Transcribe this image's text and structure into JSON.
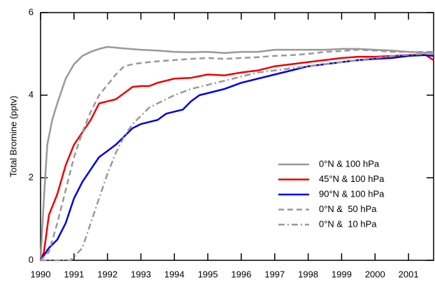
{
  "chart_data": {
    "type": "line",
    "y_label": "Total Bromine (pptv)",
    "xlim": [
      1990,
      2001.75
    ],
    "xticks": [
      1990,
      1991,
      1992,
      1993,
      1994,
      1995,
      1996,
      1997,
      1998,
      1999,
      2000,
      2001
    ],
    "ylim": [
      0,
      6
    ],
    "yticks": [
      0,
      2,
      4,
      6
    ],
    "legend_position": "lower right",
    "series": [
      {
        "name": "0°N & 100 hPa",
        "color": "#999999",
        "dash": "solid",
        "x": [
          1990,
          1990.1,
          1990.2,
          1990.35,
          1990.5,
          1990.75,
          1991,
          1991.25,
          1991.5,
          1991.75,
          1992,
          1992.5,
          1993,
          1993.5,
          1994,
          1994.5,
          1995,
          1995.5,
          1996,
          1996.5,
          1997,
          1997.5,
          1998,
          1998.5,
          1999,
          1999.5,
          2000,
          2000.5,
          2001,
          2001.5,
          2001.75
        ],
        "values": [
          0,
          1.5,
          2.8,
          3.4,
          3.8,
          4.4,
          4.75,
          4.95,
          5.05,
          5.12,
          5.17,
          5.13,
          5.1,
          5.08,
          5.05,
          5.04,
          5.05,
          5.02,
          5.05,
          5.05,
          5.1,
          5.1,
          5.1,
          5.1,
          5.12,
          5.12,
          5.1,
          5.08,
          5.05,
          5.03,
          5.0
        ]
      },
      {
        "name": "45°N & 100 hPa",
        "color": "#ee0000",
        "dash": "solid",
        "x": [
          1990,
          1990.1,
          1990.25,
          1990.5,
          1990.75,
          1991,
          1991.25,
          1991.5,
          1991.75,
          1992,
          1992.25,
          1992.5,
          1992.75,
          1993,
          1993.25,
          1993.5,
          1994,
          1994.5,
          1995,
          1995.5,
          1996,
          1996.5,
          1997,
          1997.5,
          1998,
          1998.5,
          1999,
          1999.5,
          2000,
          2000.5,
          2001,
          2001.5,
          2001.75
        ],
        "values": [
          0,
          0.2,
          1.1,
          1.6,
          2.3,
          2.8,
          3.1,
          3.4,
          3.8,
          3.85,
          3.9,
          4.05,
          4.2,
          4.22,
          4.22,
          4.3,
          4.4,
          4.42,
          4.5,
          4.48,
          4.55,
          4.6,
          4.7,
          4.75,
          4.8,
          4.85,
          4.9,
          4.93,
          4.93,
          4.95,
          4.97,
          4.98,
          4.85
        ]
      },
      {
        "name": "90°N & 100 hPa",
        "color": "#0000e0",
        "dash": "solid",
        "x": [
          1990,
          1990.25,
          1990.5,
          1990.75,
          1991,
          1991.25,
          1991.5,
          1991.75,
          1992,
          1992.25,
          1992.5,
          1992.75,
          1993,
          1993.25,
          1993.5,
          1993.75,
          1994,
          1994.25,
          1994.5,
          1994.75,
          1995,
          1995.5,
          1996,
          1996.5,
          1997,
          1997.5,
          1998,
          1998.5,
          1999,
          1999.5,
          2000,
          2000.5,
          2001,
          2001.5,
          2001.75
        ],
        "values": [
          0,
          0.3,
          0.5,
          0.9,
          1.5,
          1.9,
          2.2,
          2.5,
          2.65,
          2.8,
          3.0,
          3.2,
          3.3,
          3.35,
          3.4,
          3.55,
          3.6,
          3.65,
          3.85,
          4.0,
          4.05,
          4.15,
          4.3,
          4.4,
          4.5,
          4.6,
          4.7,
          4.75,
          4.8,
          4.85,
          4.88,
          4.9,
          4.95,
          4.97,
          4.95
        ]
      },
      {
        "name": "0°N &  50 hPa",
        "color": "#999999",
        "dash": "dashed",
        "x": [
          1990,
          1990.25,
          1990.5,
          1990.75,
          1991,
          1991.25,
          1991.5,
          1991.75,
          1992,
          1992.25,
          1992.5,
          1992.75,
          1993,
          1993.5,
          1994,
          1994.5,
          1995,
          1995.5,
          1996,
          1996.5,
          1997,
          1997.5,
          1998,
          1998.5,
          1999,
          1999.5,
          2000,
          2000.5,
          2001,
          2001.5,
          2001.75
        ],
        "values": [
          0,
          0.2,
          0.9,
          1.7,
          2.5,
          3.1,
          3.6,
          4.0,
          4.25,
          4.5,
          4.7,
          4.75,
          4.78,
          4.82,
          4.85,
          4.88,
          4.9,
          4.88,
          4.9,
          4.92,
          4.95,
          4.97,
          5.0,
          5.05,
          5.07,
          5.1,
          5.08,
          5.05,
          5.05,
          5.05,
          5.05
        ]
      },
      {
        "name": "0°N &  10 hPa",
        "color": "#999999",
        "dash": "dashdot",
        "x": [
          1990,
          1990.5,
          1990.9,
          1991.25,
          1991.5,
          1991.75,
          1992,
          1992.25,
          1992.5,
          1992.75,
          1993,
          1993.25,
          1993.5,
          1994,
          1994.5,
          1995,
          1995.5,
          1996,
          1996.5,
          1997,
          1997.5,
          1998,
          1998.5,
          1999,
          1999.5,
          2000,
          2000.5,
          2001,
          2001.5,
          2001.75
        ],
        "values": [
          0,
          0,
          0,
          0.3,
          0.9,
          1.5,
          2.1,
          2.6,
          3.0,
          3.3,
          3.5,
          3.7,
          3.8,
          4.0,
          4.15,
          4.25,
          4.35,
          4.45,
          4.55,
          4.6,
          4.65,
          4.7,
          4.75,
          4.8,
          4.85,
          4.9,
          4.95,
          4.98,
          5.0,
          5.05
        ]
      }
    ]
  }
}
